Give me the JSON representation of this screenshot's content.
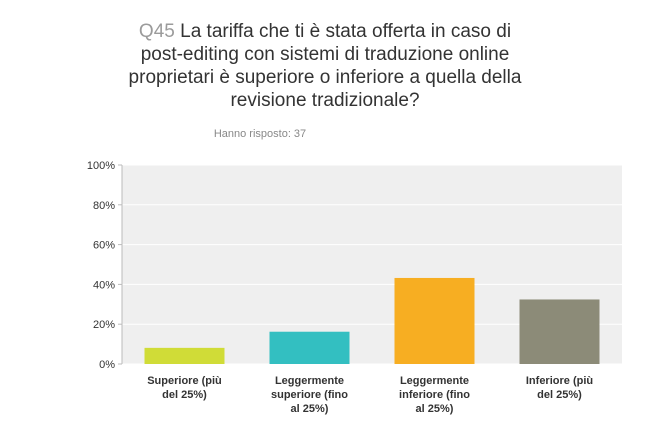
{
  "title": {
    "question_number": "Q45",
    "question_text": "La tariffa che ti è stata offerta in caso di post-editing con sistemi di traduzione online proprietari è superiore o inferiore a quella della revisione tradizionale?"
  },
  "respondents_label": "Hanno risposto: 37",
  "chart_data": {
    "type": "bar",
    "categories": [
      [
        "Superiore (più",
        "del 25%)"
      ],
      [
        "Leggermente",
        "superiore (fino",
        "al 25%)"
      ],
      [
        "Leggermente",
        "inferiore (fino",
        "al 25%)"
      ],
      [
        "Inferiore (più",
        "del 25%)"
      ]
    ],
    "values": [
      8.11,
      16.22,
      43.24,
      32.43
    ],
    "ylim": [
      0,
      100
    ],
    "yticks": [
      "0%",
      "20%",
      "40%",
      "60%",
      "80%",
      "100%"
    ],
    "colors": [
      "#d0dc37",
      "#33bfc1",
      "#f7ae22",
      "#8c8b78"
    ],
    "plot_background": "#efefef",
    "grid": true
  }
}
